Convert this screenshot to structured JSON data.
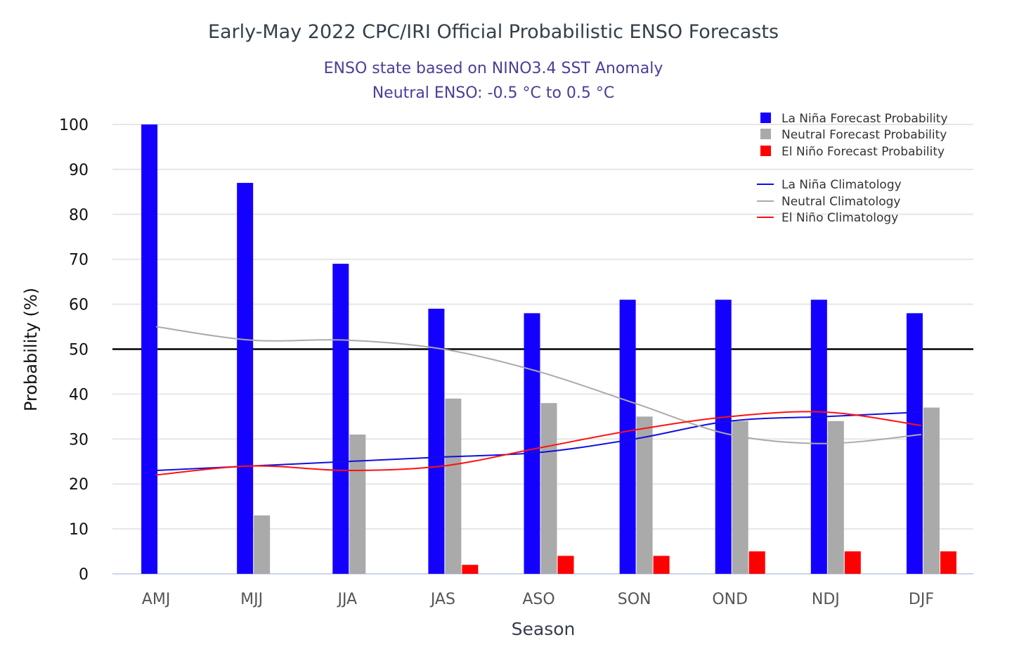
{
  "chart_data": {
    "type": "bar",
    "title": "Early-May 2022 CPC/IRI Official Probabilistic ENSO Forecasts",
    "subtitle_lines": [
      "ENSO state based on NINO3.4 SST Anomaly",
      "Neutral ENSO: -0.5 °C to 0.5 °C"
    ],
    "xlabel": "Season",
    "ylabel": "Probability (%)",
    "ylim": [
      0,
      100
    ],
    "yticks": [
      0,
      10,
      20,
      30,
      40,
      50,
      60,
      70,
      80,
      90,
      100
    ],
    "grid": true,
    "reference_line": 50,
    "legend_position": "top-right",
    "categories": [
      "AMJ",
      "MJJ",
      "JJA",
      "JAS",
      "ASO",
      "SON",
      "OND",
      "NDJ",
      "DJF"
    ],
    "series": [
      {
        "name": "La Niña Forecast Probability",
        "kind": "bar",
        "color": "#1400ff",
        "values": [
          100,
          87,
          69,
          59,
          58,
          61,
          61,
          61,
          58
        ]
      },
      {
        "name": "Neutral Forecast Probability",
        "kind": "bar",
        "color": "#aaaaaa",
        "values": [
          0,
          13,
          31,
          39,
          38,
          35,
          34,
          34,
          37
        ]
      },
      {
        "name": "El Niño Forecast Probability",
        "kind": "bar",
        "color": "#ff0000",
        "values": [
          0,
          0,
          0,
          2,
          4,
          4,
          5,
          5,
          5
        ]
      },
      {
        "name": "La Niña Climatology",
        "kind": "line",
        "color": "#1010e0",
        "values": [
          23,
          24,
          25,
          26,
          27,
          30,
          34,
          35,
          36
        ]
      },
      {
        "name": "Neutral Climatology",
        "kind": "line",
        "color": "#aaaaaa",
        "values": [
          55,
          52,
          52,
          50,
          45,
          38,
          31,
          29,
          31
        ]
      },
      {
        "name": "El Niño Climatology",
        "kind": "line",
        "color": "#ff1010",
        "values": [
          22,
          24,
          23,
          24,
          28,
          32,
          35,
          36,
          33
        ]
      }
    ]
  }
}
